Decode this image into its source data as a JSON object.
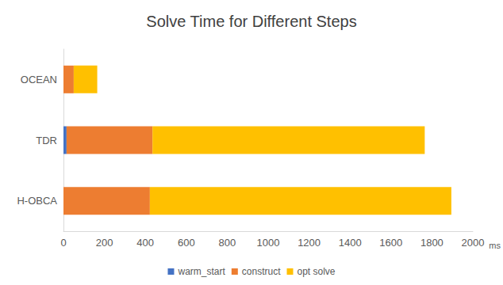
{
  "chart_data": {
    "type": "bar",
    "title": "Solve Time for Different Steps",
    "orientation": "horizontal",
    "stacked": true,
    "grid": false,
    "legend": "bottom",
    "categories": [
      "OCEAN",
      "TDR",
      "H-OBCA"
    ],
    "series": [
      {
        "name": "warm_start",
        "color": "#4472c4",
        "values": [
          0,
          15,
          0
        ]
      },
      {
        "name": "construct",
        "color": "#ed7d31",
        "values": [
          50,
          420,
          422
        ]
      },
      {
        "name": "opt solve",
        "color": "#ffc000",
        "values": [
          115,
          1330,
          1473
        ]
      }
    ],
    "x_label": "ms",
    "xlim": [
      0,
      2000
    ],
    "xticks": [
      0,
      200,
      400,
      600,
      800,
      1000,
      1200,
      1400,
      1600,
      1800,
      2000
    ]
  }
}
